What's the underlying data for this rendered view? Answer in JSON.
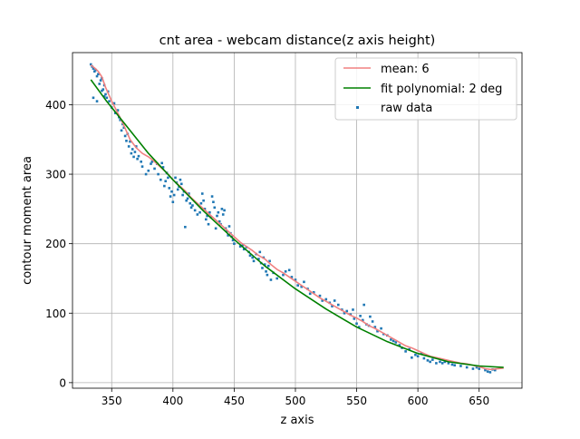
{
  "chart_data": {
    "type": "scatter",
    "title": "cnt area - webcam distance(z axis height)",
    "xlabel": "z axis",
    "ylabel": "contour moment area",
    "xlim": [
      318,
      685
    ],
    "ylim": [
      -8,
      475
    ],
    "xticks": [
      350,
      400,
      450,
      500,
      550,
      600,
      650
    ],
    "yticks": [
      0,
      100,
      200,
      300,
      400
    ],
    "grid": true,
    "legend_position": "upper right",
    "series": [
      {
        "name": "mean: 6",
        "kind": "line",
        "color": "#f08080",
        "points": [
          [
            333,
            457
          ],
          [
            336,
            453
          ],
          [
            339,
            448
          ],
          [
            342,
            440
          ],
          [
            345,
            425
          ],
          [
            350,
            405
          ],
          [
            355,
            388
          ],
          [
            360,
            370
          ],
          [
            365,
            350
          ],
          [
            370,
            338
          ],
          [
            375,
            330
          ],
          [
            380,
            325
          ],
          [
            385,
            318
          ],
          [
            390,
            310
          ],
          [
            395,
            302
          ],
          [
            400,
            292
          ],
          [
            405,
            284
          ],
          [
            410,
            276
          ],
          [
            415,
            266
          ],
          [
            420,
            258
          ],
          [
            425,
            250
          ],
          [
            430,
            242
          ],
          [
            435,
            234
          ],
          [
            440,
            226
          ],
          [
            445,
            218
          ],
          [
            450,
            210
          ],
          [
            455,
            202
          ],
          [
            460,
            196
          ],
          [
            465,
            190
          ],
          [
            470,
            183
          ],
          [
            475,
            178
          ],
          [
            480,
            170
          ],
          [
            485,
            163
          ],
          [
            490,
            158
          ],
          [
            495,
            152
          ],
          [
            500,
            146
          ],
          [
            505,
            140
          ],
          [
            510,
            134
          ],
          [
            515,
            128
          ],
          [
            520,
            122
          ],
          [
            525,
            117
          ],
          [
            530,
            112
          ],
          [
            535,
            107
          ],
          [
            540,
            102
          ],
          [
            545,
            97
          ],
          [
            550,
            93
          ],
          [
            555,
            88
          ],
          [
            560,
            82
          ],
          [
            565,
            78
          ],
          [
            570,
            73
          ],
          [
            575,
            68
          ],
          [
            580,
            63
          ],
          [
            585,
            58
          ],
          [
            590,
            53
          ],
          [
            595,
            50
          ],
          [
            600,
            46
          ],
          [
            605,
            42
          ],
          [
            610,
            38
          ],
          [
            615,
            36
          ],
          [
            620,
            34
          ],
          [
            625,
            32
          ],
          [
            630,
            30
          ],
          [
            635,
            28
          ],
          [
            640,
            27
          ],
          [
            645,
            25
          ],
          [
            650,
            23
          ],
          [
            655,
            20
          ],
          [
            660,
            19
          ],
          [
            665,
            20
          ],
          [
            670,
            21
          ]
        ]
      },
      {
        "name": "fit polynomial: 2 deg",
        "kind": "line",
        "color": "#008000",
        "points": [
          [
            333,
            436
          ],
          [
            345,
            407
          ],
          [
            360,
            374
          ],
          [
            380,
            330
          ],
          [
            400,
            292
          ],
          [
            425,
            247
          ],
          [
            450,
            206
          ],
          [
            475,
            168
          ],
          [
            500,
            135
          ],
          [
            525,
            106
          ],
          [
            550,
            80
          ],
          [
            575,
            59
          ],
          [
            600,
            42
          ],
          [
            625,
            30
          ],
          [
            650,
            24
          ],
          [
            670,
            22
          ]
        ]
      },
      {
        "name": "raw data",
        "kind": "scatter",
        "color": "#1f77b4",
        "points": [
          [
            333,
            458
          ],
          [
            334,
            455
          ],
          [
            335,
            452
          ],
          [
            336,
            448
          ],
          [
            337,
            450
          ],
          [
            338,
            441
          ],
          [
            339,
            444
          ],
          [
            340,
            430
          ],
          [
            341,
            435
          ],
          [
            342,
            438
          ],
          [
            343,
            422
          ],
          [
            344,
            428
          ],
          [
            345,
            415
          ],
          [
            346,
            410
          ],
          [
            347,
            419
          ],
          [
            348,
            405
          ],
          [
            335,
            410
          ],
          [
            338,
            405
          ],
          [
            342,
            420
          ],
          [
            344,
            412
          ],
          [
            350,
            396
          ],
          [
            352,
            402
          ],
          [
            353,
            388
          ],
          [
            355,
            392
          ],
          [
            356,
            382
          ],
          [
            357,
            378
          ],
          [
            358,
            363
          ],
          [
            359,
            372
          ],
          [
            360,
            367
          ],
          [
            361,
            355
          ],
          [
            362,
            348
          ],
          [
            363,
            358
          ],
          [
            364,
            340
          ],
          [
            365,
            347
          ],
          [
            366,
            330
          ],
          [
            367,
            336
          ],
          [
            368,
            325
          ],
          [
            369,
            332
          ],
          [
            370,
            340
          ],
          [
            371,
            322
          ],
          [
            372,
            326
          ],
          [
            374,
            318
          ],
          [
            375,
            311
          ],
          [
            378,
            300
          ],
          [
            380,
            305
          ],
          [
            382,
            315
          ],
          [
            383,
            318
          ],
          [
            385,
            308
          ],
          [
            387,
            315
          ],
          [
            388,
            300
          ],
          [
            390,
            292
          ],
          [
            391,
            316
          ],
          [
            392,
            310
          ],
          [
            393,
            283
          ],
          [
            394,
            290
          ],
          [
            395,
            302
          ],
          [
            396,
            295
          ],
          [
            397,
            280
          ],
          [
            398,
            268
          ],
          [
            399,
            275
          ],
          [
            400,
            260
          ],
          [
            401,
            270
          ],
          [
            402,
            295
          ],
          [
            403,
            288
          ],
          [
            404,
            278
          ],
          [
            405,
            282
          ],
          [
            406,
            292
          ],
          [
            407,
            286
          ],
          [
            408,
            270
          ],
          [
            409,
            275
          ],
          [
            410,
            224
          ],
          [
            411,
            262
          ],
          [
            412,
            265
          ],
          [
            413,
            272
          ],
          [
            414,
            258
          ],
          [
            415,
            252
          ],
          [
            416,
            255
          ],
          [
            418,
            248
          ],
          [
            420,
            242
          ],
          [
            422,
            245
          ],
          [
            423,
            258
          ],
          [
            424,
            272
          ],
          [
            425,
            262
          ],
          [
            426,
            250
          ],
          [
            427,
            235
          ],
          [
            428,
            240
          ],
          [
            429,
            228
          ],
          [
            430,
            245
          ],
          [
            431,
            238
          ],
          [
            432,
            268
          ],
          [
            433,
            260
          ],
          [
            434,
            252
          ],
          [
            435,
            222
          ],
          [
            436,
            240
          ],
          [
            437,
            245
          ],
          [
            438,
            232
          ],
          [
            439,
            228
          ],
          [
            440,
            250
          ],
          [
            441,
            242
          ],
          [
            442,
            248
          ],
          [
            443,
            222
          ],
          [
            444,
            218
          ],
          [
            445,
            212
          ],
          [
            446,
            225
          ],
          [
            447,
            215
          ],
          [
            448,
            210
          ],
          [
            449,
            205
          ],
          [
            450,
            200
          ],
          [
            455,
            196
          ],
          [
            457,
            198
          ],
          [
            458,
            192
          ],
          [
            460,
            195
          ],
          [
            462,
            188
          ],
          [
            463,
            183
          ],
          [
            465,
            180
          ],
          [
            466,
            175
          ],
          [
            468,
            185
          ],
          [
            470,
            178
          ],
          [
            471,
            188
          ],
          [
            472,
            172
          ],
          [
            473,
            165
          ],
          [
            474,
            180
          ],
          [
            475,
            170
          ],
          [
            476,
            160
          ],
          [
            477,
            155
          ],
          [
            478,
            168
          ],
          [
            479,
            175
          ],
          [
            480,
            148
          ],
          [
            482,
            158
          ],
          [
            485,
            150
          ],
          [
            490,
            155
          ],
          [
            492,
            160
          ],
          [
            495,
            162
          ],
          [
            497,
            152
          ],
          [
            500,
            148
          ],
          [
            502,
            140
          ],
          [
            505,
            138
          ],
          [
            507,
            145
          ],
          [
            510,
            135
          ],
          [
            512,
            128
          ],
          [
            515,
            130
          ],
          [
            520,
            125
          ],
          [
            522,
            118
          ],
          [
            525,
            120
          ],
          [
            528,
            115
          ],
          [
            530,
            110
          ],
          [
            532,
            118
          ],
          [
            535,
            112
          ],
          [
            538,
            105
          ],
          [
            540,
            100
          ],
          [
            542,
            103
          ],
          [
            545,
            98
          ],
          [
            547,
            105
          ],
          [
            548,
            92
          ],
          [
            550,
            85
          ],
          [
            552,
            80
          ],
          [
            553,
            96
          ],
          [
            555,
            90
          ],
          [
            556,
            112
          ],
          [
            558,
            84
          ],
          [
            560,
            82
          ],
          [
            561,
            95
          ],
          [
            563,
            88
          ],
          [
            565,
            80
          ],
          [
            567,
            74
          ],
          [
            570,
            78
          ],
          [
            572,
            70
          ],
          [
            575,
            68
          ],
          [
            578,
            62
          ],
          [
            580,
            60
          ],
          [
            582,
            58
          ],
          [
            585,
            54
          ],
          [
            587,
            50
          ],
          [
            590,
            45
          ],
          [
            593,
            48
          ],
          [
            595,
            36
          ],
          [
            598,
            40
          ],
          [
            600,
            38
          ],
          [
            603,
            42
          ],
          [
            605,
            35
          ],
          [
            608,
            32
          ],
          [
            610,
            30
          ],
          [
            612,
            33
          ],
          [
            615,
            28
          ],
          [
            618,
            30
          ],
          [
            620,
            28
          ],
          [
            622,
            30
          ],
          [
            625,
            28
          ],
          [
            628,
            26
          ],
          [
            630,
            25
          ],
          [
            635,
            24
          ],
          [
            640,
            22
          ],
          [
            645,
            20
          ],
          [
            648,
            22
          ],
          [
            650,
            20
          ],
          [
            655,
            18
          ],
          [
            657,
            16
          ],
          [
            659,
            15
          ],
          [
            661,
            19
          ],
          [
            663,
            18
          ]
        ]
      }
    ]
  }
}
